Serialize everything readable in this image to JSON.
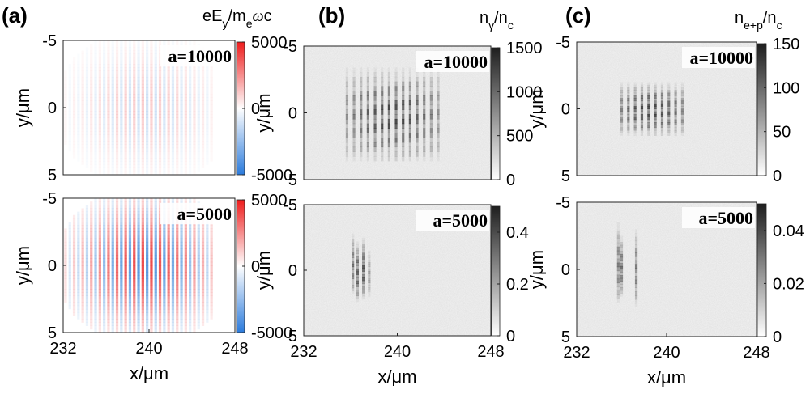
{
  "panels": [
    {
      "id": "a",
      "label": "(a)",
      "colorbar_title": "eEₕ/mₑωc"
    },
    {
      "id": "b",
      "label": "(b)",
      "colorbar_title": "nγ/nc"
    },
    {
      "id": "c",
      "label": "(c)",
      "colorbar_title": "ne+p/nc"
    }
  ],
  "chart_data": [
    {
      "panel": "a",
      "row": "top",
      "type": "heatmap",
      "annotation": "a=10000",
      "colormap": "diverging-blue-white-red",
      "xlim": [
        232,
        248
      ],
      "ylim": [
        -5,
        5
      ],
      "y_inverted": true,
      "clim": [
        -5000,
        5000
      ],
      "colorbar_ticks": [
        5000,
        0,
        -5000
      ],
      "colorbar_tick_labels": [
        "5000",
        "0",
        "-5000"
      ],
      "ylabel": "y/μm",
      "yticks": [
        "-5",
        "0",
        "5"
      ],
      "field_amplitude_fraction": 0.2
    },
    {
      "panel": "a",
      "row": "bottom",
      "type": "heatmap",
      "annotation": "a=5000",
      "colormap": "diverging-blue-white-red",
      "xlim": [
        232,
        248
      ],
      "ylim": [
        -5,
        5
      ],
      "y_inverted": true,
      "clim": [
        -5000,
        5000
      ],
      "colorbar_ticks": [
        5000,
        0,
        -5000
      ],
      "colorbar_tick_labels": [
        "5000",
        "0",
        "-5000"
      ],
      "ylabel": "y/μm",
      "yticks": [
        "-5",
        "0",
        "5"
      ],
      "xlabel": "x/μm",
      "xticks": [
        "232",
        "240",
        "248"
      ],
      "field_amplitude_fraction": 0.75
    },
    {
      "panel": "b",
      "row": "top",
      "type": "heatmap",
      "annotation": "a=10000",
      "colormap": "grayscale",
      "xlim": [
        232,
        248
      ],
      "ylim": [
        -5,
        5
      ],
      "y_inverted": true,
      "clim": [
        0,
        1500
      ],
      "colorbar_ticks": [
        1500,
        1000,
        500,
        0
      ],
      "colorbar_tick_labels": [
        "1500",
        "1000",
        "500",
        "0"
      ],
      "ylabel": "y/μm",
      "yticks": [
        "-5",
        "0",
        "5"
      ]
    },
    {
      "panel": "b",
      "row": "bottom",
      "type": "heatmap",
      "annotation": "a=5000",
      "colormap": "grayscale",
      "xlim": [
        232,
        248
      ],
      "ylim": [
        -5,
        5
      ],
      "y_inverted": true,
      "clim": [
        0,
        0.5
      ],
      "colorbar_ticks": [
        0.4,
        0.2,
        0
      ],
      "colorbar_tick_labels": [
        "0.4",
        "0.2",
        "0"
      ],
      "ylabel": "y/μm",
      "yticks": [
        "-5",
        "0",
        "5"
      ],
      "xlabel": "x/μm",
      "xticks": [
        "232",
        "240",
        "248"
      ]
    },
    {
      "panel": "c",
      "row": "top",
      "type": "heatmap",
      "annotation": "a=10000",
      "colormap": "grayscale",
      "xlim": [
        232,
        248
      ],
      "ylim": [
        -5,
        5
      ],
      "y_inverted": true,
      "clim": [
        0,
        150
      ],
      "colorbar_ticks": [
        150,
        100,
        50,
        0
      ],
      "colorbar_tick_labels": [
        "150",
        "100",
        "50",
        "0"
      ],
      "ylabel": "y/μm",
      "yticks": [
        "-5",
        "0",
        "5"
      ]
    },
    {
      "panel": "c",
      "row": "bottom",
      "type": "heatmap",
      "annotation": "a=5000",
      "colormap": "grayscale",
      "xlim": [
        232,
        248
      ],
      "ylim": [
        -5,
        5
      ],
      "y_inverted": true,
      "clim": [
        0,
        0.05
      ],
      "colorbar_ticks": [
        0.04,
        0.02,
        0
      ],
      "colorbar_tick_labels": [
        "0.04",
        "0.02",
        "0"
      ],
      "ylabel": "y/μm",
      "yticks": [
        "-5",
        "0",
        "5"
      ],
      "xlabel": "x/μm",
      "xticks": [
        "232",
        "240",
        "248"
      ]
    }
  ]
}
